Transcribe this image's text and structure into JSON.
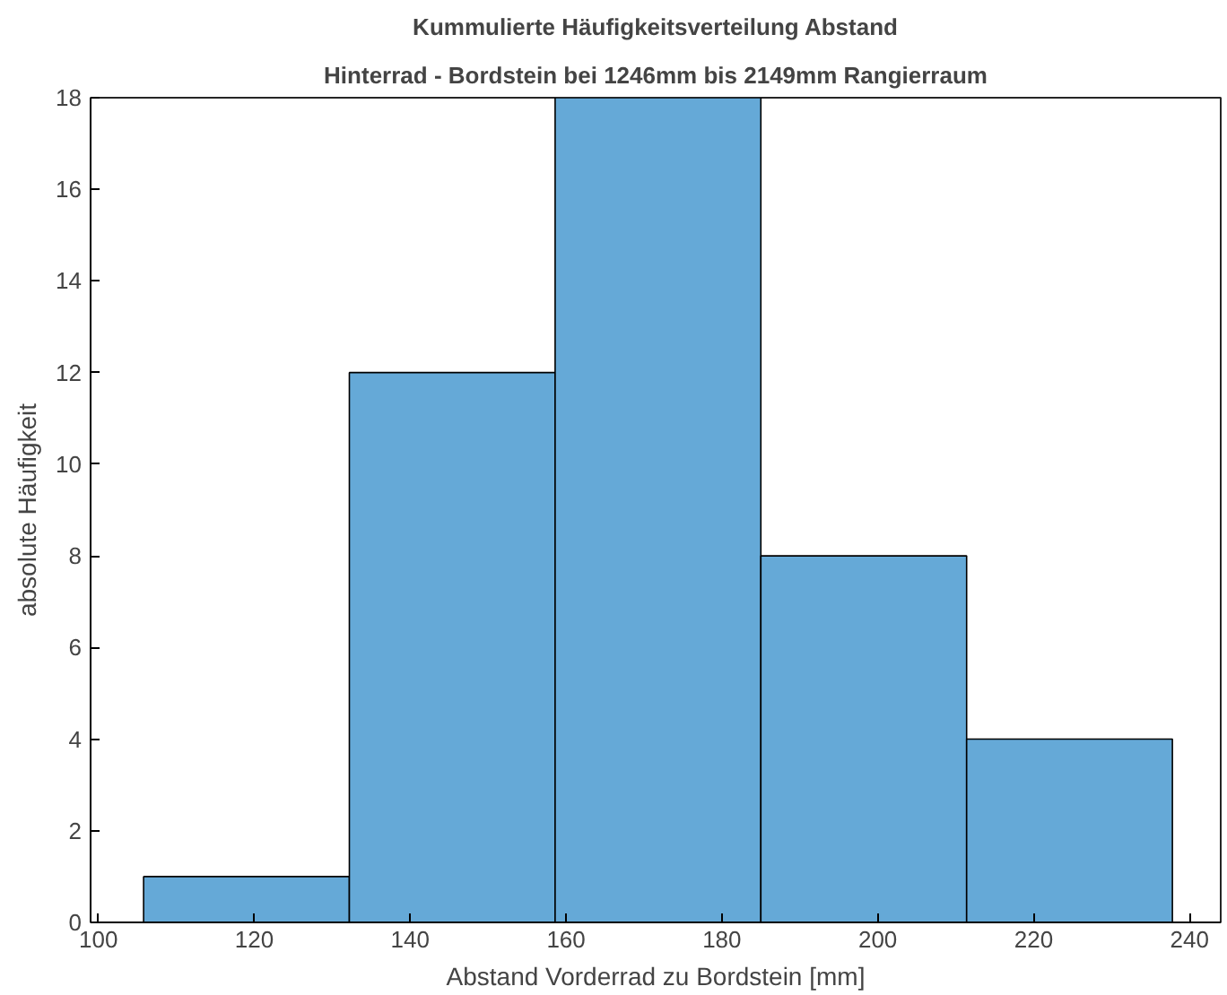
{
  "chart_data": {
    "type": "histogram",
    "title": "Kummulierte Häufigkeitsverteilung Abstand",
    "subtitle": "Hinterrad - Bordstein bei 1246mm bis 2149mm Rangierraum",
    "xlabel": "Abstand Vorderrad zu Bordstein [mm]",
    "ylabel": "absolute Häufigkeit",
    "bins": [
      105.8,
      132.2,
      158.6,
      185.0,
      211.4,
      237.8
    ],
    "values": [
      1,
      12,
      18,
      8,
      4
    ],
    "color": "#65a9d7",
    "xlim": [
      99,
      244
    ],
    "ylim": [
      0,
      18
    ],
    "xticks": [
      100,
      120,
      140,
      160,
      180,
      200,
      220,
      240
    ],
    "yticks": [
      0,
      2,
      4,
      6,
      8,
      10,
      12,
      14,
      16,
      18
    ],
    "grid": false
  }
}
